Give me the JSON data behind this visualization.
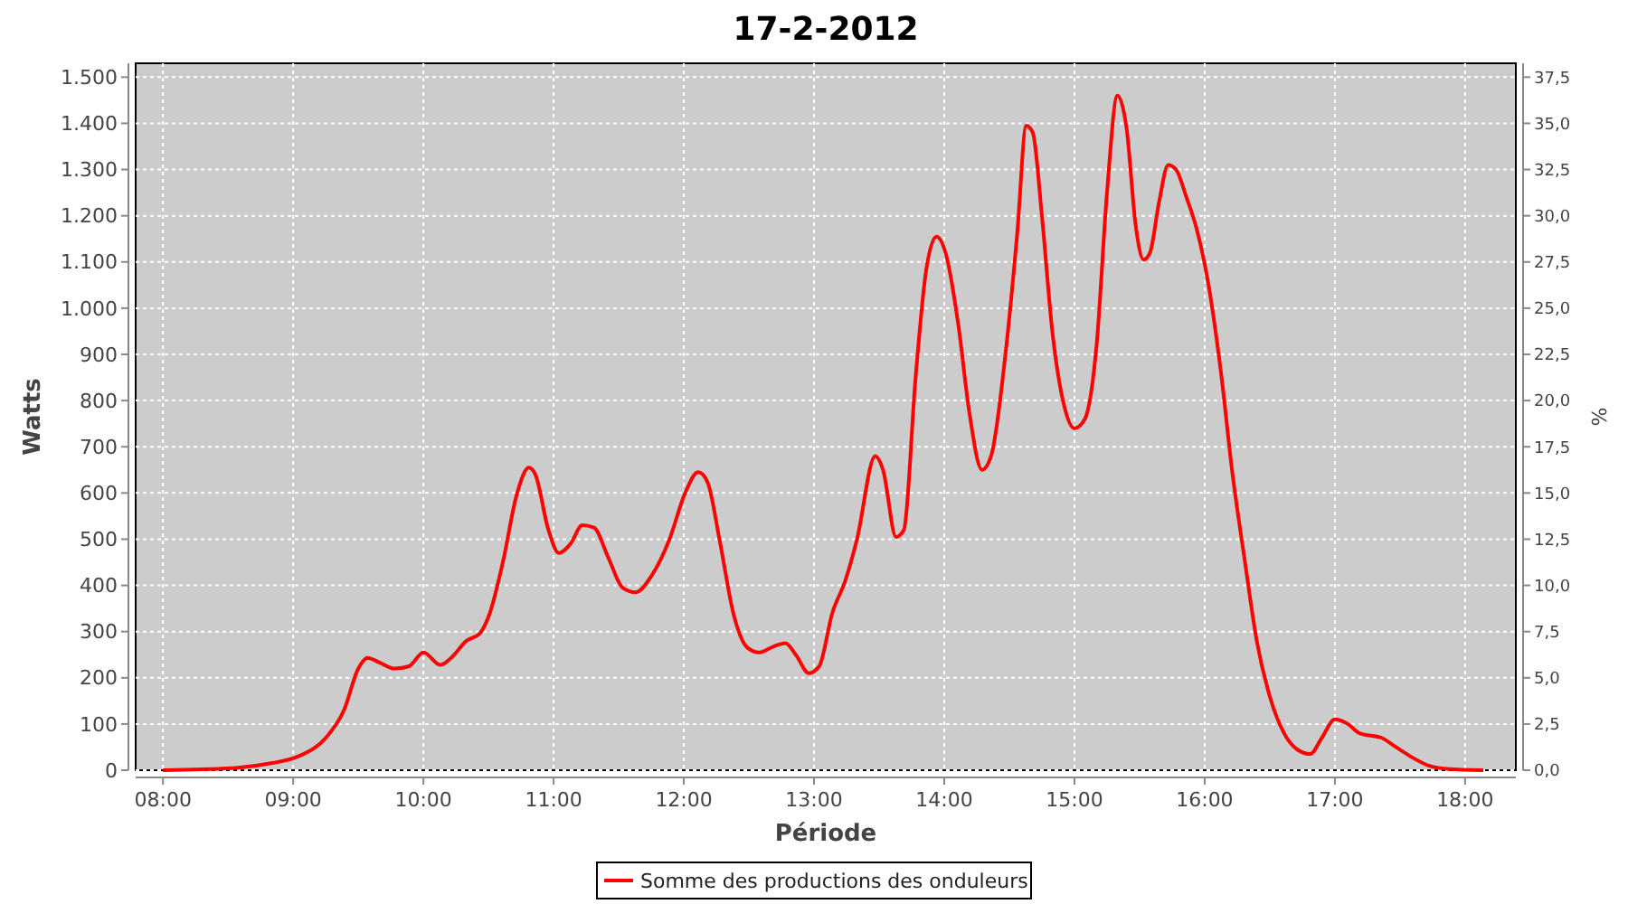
{
  "chart_data": {
    "type": "line",
    "title": "17-2-2012",
    "xlabel": "Période",
    "ylabel": "Watts",
    "y2label": "%",
    "xlim": [
      7.79,
      18.39
    ],
    "xticks": [
      {
        "value": 8,
        "label": "08:00"
      },
      {
        "value": 9,
        "label": "09:00"
      },
      {
        "value": 10,
        "label": "10:00"
      },
      {
        "value": 11,
        "label": "11:00"
      },
      {
        "value": 12,
        "label": "12:00"
      },
      {
        "value": 13,
        "label": "13:00"
      },
      {
        "value": 14,
        "label": "14:00"
      },
      {
        "value": 15,
        "label": "15:00"
      },
      {
        "value": 16,
        "label": "16:00"
      },
      {
        "value": 17,
        "label": "17:00"
      },
      {
        "value": 18,
        "label": "18:00"
      }
    ],
    "ylim": [
      0,
      1530
    ],
    "yticks": [
      0,
      100,
      200,
      300,
      400,
      500,
      600,
      700,
      800,
      900,
      {
        "value": 1000,
        "label": "1.000"
      },
      {
        "value": 1100,
        "label": "1.100"
      },
      {
        "value": 1200,
        "label": "1.200"
      },
      {
        "value": 1300,
        "label": "1.300"
      },
      {
        "value": 1400,
        "label": "1.400"
      },
      {
        "value": 1500,
        "label": "1.500"
      }
    ],
    "y2lim": [
      0,
      38.25
    ],
    "y2ticks": [
      {
        "value": 0,
        "label": "0,0"
      },
      {
        "value": 2.5,
        "label": "2,5"
      },
      {
        "value": 5,
        "label": "5,0"
      },
      {
        "value": 7.5,
        "label": "7,5"
      },
      {
        "value": 10,
        "label": "10,0"
      },
      {
        "value": 12.5,
        "label": "12,5"
      },
      {
        "value": 15,
        "label": "15,0"
      },
      {
        "value": 17.5,
        "label": "17,5"
      },
      {
        "value": 20,
        "label": "20,0"
      },
      {
        "value": 22.5,
        "label": "22,5"
      },
      {
        "value": 25,
        "label": "25,0"
      },
      {
        "value": 27.5,
        "label": "27,5"
      },
      {
        "value": 30,
        "label": "30,0"
      },
      {
        "value": 32.5,
        "label": "32,5"
      },
      {
        "value": 35,
        "label": "35,0"
      },
      {
        "value": 37.5,
        "label": "37,5"
      }
    ],
    "grid": true,
    "legend": "bottom",
    "line_style": "solid",
    "series": [
      {
        "name": "Somme des productions des onduleurs",
        "color": "#ff0000",
        "x": [
          8.0,
          8.56,
          8.83,
          9.04,
          9.25,
          9.39,
          9.5,
          9.57,
          9.67,
          9.78,
          9.89,
          10.0,
          10.13,
          10.22,
          10.33,
          10.43,
          10.51,
          10.61,
          10.72,
          10.81,
          10.86,
          10.96,
          11.04,
          11.13,
          11.22,
          11.31,
          11.42,
          11.53,
          11.63,
          11.75,
          11.89,
          12.01,
          12.11,
          12.18,
          12.28,
          12.38,
          12.49,
          12.58,
          12.69,
          12.78,
          12.86,
          12.96,
          13.04,
          13.14,
          13.24,
          13.33,
          13.47,
          13.53,
          13.63,
          13.69,
          13.78,
          13.86,
          13.94,
          14.01,
          14.11,
          14.19,
          14.29,
          14.36,
          14.47,
          14.56,
          14.63,
          14.68,
          14.75,
          14.83,
          14.92,
          15.0,
          15.08,
          15.17,
          15.25,
          15.33,
          15.4,
          15.47,
          15.53,
          15.58,
          15.65,
          15.72,
          15.78,
          15.86,
          15.94,
          16.03,
          16.13,
          16.21,
          16.31,
          16.4,
          16.5,
          16.61,
          16.71,
          16.81,
          16.9,
          17.0,
          17.1,
          17.19,
          17.36,
          17.47,
          17.58,
          17.72,
          17.86,
          18.14
        ],
        "values": [
          0,
          5,
          15,
          30,
          70,
          130,
          220,
          243,
          232,
          220,
          225,
          255,
          228,
          245,
          280,
          295,
          340,
          450,
          600,
          655,
          640,
          520,
          470,
          490,
          530,
          525,
          460,
          395,
          385,
          420,
          500,
          600,
          645,
          625,
          490,
          340,
          265,
          255,
          268,
          275,
          250,
          210,
          225,
          340,
          410,
          500,
          680,
          650,
          505,
          520,
          850,
          1080,
          1155,
          1120,
          960,
          780,
          650,
          680,
          900,
          1160,
          1395,
          1380,
          1200,
          950,
          790,
          740,
          760,
          920,
          1250,
          1460,
          1390,
          1180,
          1105,
          1120,
          1230,
          1310,
          1300,
          1240,
          1170,
          1050,
          850,
          650,
          450,
          280,
          160,
          80,
          45,
          35,
          70,
          110,
          100,
          80,
          70,
          50,
          30,
          10,
          3,
          0
        ]
      }
    ]
  }
}
